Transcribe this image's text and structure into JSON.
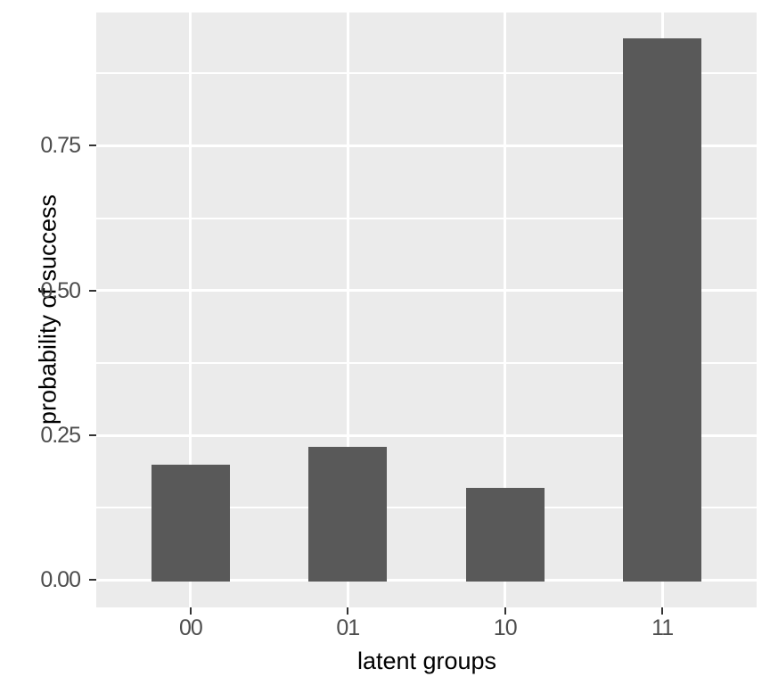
{
  "chart_data": {
    "type": "bar",
    "title": "",
    "xlabel": "latent groups",
    "ylabel": "probability of success",
    "categories": [
      "00",
      "01",
      "10",
      "11"
    ],
    "values": [
      0.2,
      0.23,
      0.16,
      0.935
    ],
    "y_ticks": {
      "labels": [
        "0.00",
        "0.25",
        "0.50",
        "0.75"
      ],
      "values": [
        0.0,
        0.25,
        0.5,
        0.75
      ]
    },
    "y_minor_gridlines": [
      0.125,
      0.375,
      0.625,
      0.875
    ],
    "ylim": [
      -0.047,
      0.98
    ],
    "grid": "major-and-minor, white on gray panel",
    "legend": "none",
    "colors": {
      "bar_fill": "#595959",
      "panel_bg": "#EBEBEB",
      "gridline": "#FFFFFF",
      "tick_text": "#4D4D4D",
      "tick_mark": "#333333",
      "axis_title": "#000000",
      "background": "#FFFFFF"
    }
  }
}
